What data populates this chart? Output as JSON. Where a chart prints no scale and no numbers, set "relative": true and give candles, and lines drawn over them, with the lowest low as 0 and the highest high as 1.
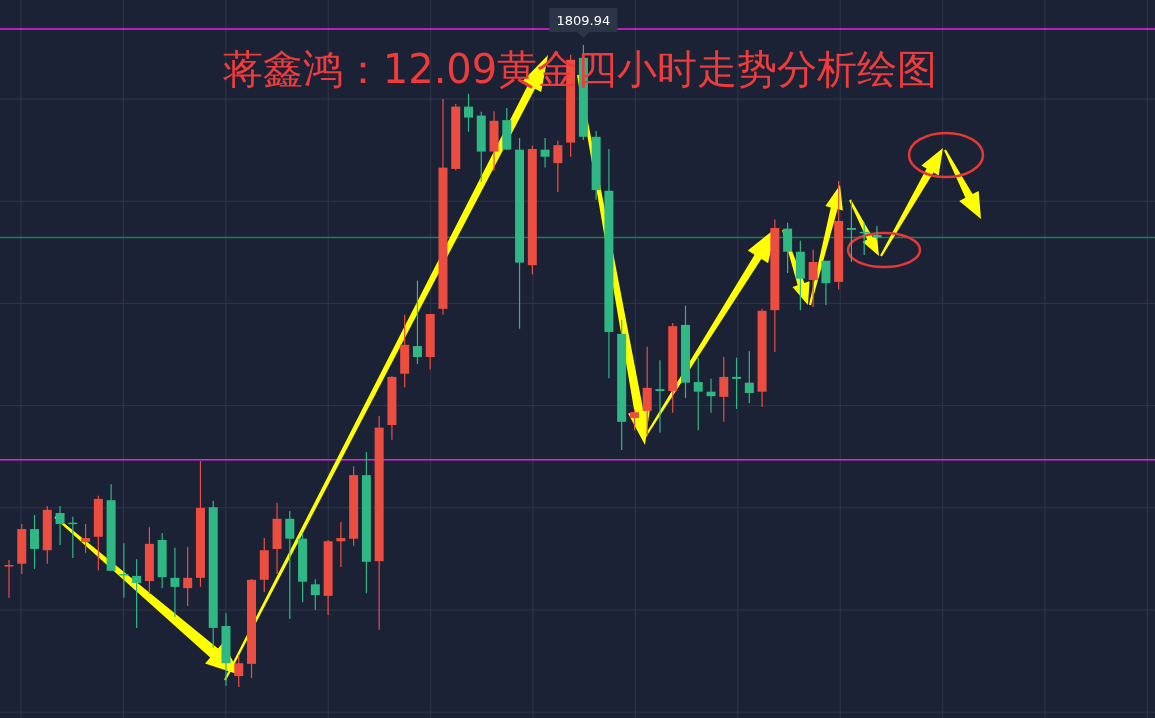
{
  "chart_data": {
    "type": "candlestick",
    "title": "蒋鑫鸿：12.09黄金四小时走势分析绘图",
    "relative": true,
    "grid": true,
    "annotations": [
      "1809.94"
    ],
    "ref_lines": [
      {
        "axis": "y",
        "value": 1.025,
        "color": "#e81ee8"
      },
      {
        "axis": "y",
        "value": 0.354,
        "color": "#e81ee8"
      },
      {
        "axis": "y",
        "value": 0.7,
        "color": "#1e7a5c"
      }
    ],
    "categories": [
      null,
      null,
      null,
      null,
      null,
      null,
      null,
      null,
      null,
      null,
      null,
      null,
      null,
      null,
      null,
      null,
      null,
      null,
      null,
      null,
      null,
      null,
      null,
      null,
      null,
      null,
      null,
      null,
      null,
      null,
      null,
      null,
      null,
      null,
      null,
      null,
      null,
      null,
      null,
      null,
      null,
      null,
      null,
      null,
      null,
      null,
      null,
      null,
      null,
      null,
      null,
      null,
      null,
      null,
      null,
      null,
      null,
      null,
      null,
      null,
      null,
      null,
      null,
      null,
      null,
      null,
      null,
      null,
      null,
      null,
      null,
      null,
      null,
      null,
      null,
      null,
      null,
      null,
      null,
      null,
      null,
      null,
      null,
      null,
      null,
      null,
      null,
      null,
      null,
      null
    ],
    "ohlc": [
      [
        0.189,
        0.198,
        0.139,
        0.19
      ],
      [
        0.192,
        0.254,
        0.176,
        0.246
      ],
      [
        0.246,
        0.268,
        0.184,
        0.215
      ],
      [
        0.213,
        0.282,
        0.192,
        0.276
      ],
      [
        0.271,
        0.282,
        0.221,
        0.254
      ],
      [
        0.256,
        0.265,
        0.201,
        0.254
      ],
      [
        0.226,
        0.254,
        0.209,
        0.232
      ],
      [
        0.234,
        0.298,
        0.182,
        0.293
      ],
      [
        0.291,
        0.316,
        0.181,
        0.181
      ],
      [
        0.176,
        0.224,
        0.139,
        0.174
      ],
      [
        0.173,
        0.199,
        0.092,
        0.162
      ],
      [
        0.165,
        0.249,
        0.145,
        0.223
      ],
      [
        0.229,
        0.24,
        0.154,
        0.171
      ],
      [
        0.17,
        0.217,
        0.109,
        0.156
      ],
      [
        0.154,
        0.218,
        0.126,
        0.17
      ],
      [
        0.17,
        0.352,
        0.156,
        0.279
      ],
      [
        0.28,
        0.29,
        0.061,
        0.092
      ],
      [
        0.095,
        0.115,
        0.002,
        0.037
      ],
      [
        0.017,
        0.05,
        0,
        0.037
      ],
      [
        0.036,
        0.168,
        0.014,
        0.167
      ],
      [
        0.167,
        0.232,
        0.148,
        0.213
      ],
      [
        0.215,
        0.287,
        0.176,
        0.262
      ],
      [
        0.262,
        0.274,
        0.106,
        0.231
      ],
      [
        0.231,
        0.24,
        0.132,
        0.164
      ],
      [
        0.16,
        0.168,
        0.12,
        0.143
      ],
      [
        0.142,
        0.229,
        0.112,
        0.227
      ],
      [
        0.227,
        0.257,
        0.187,
        0.232
      ],
      [
        0.231,
        0.344,
        0.22,
        0.33
      ],
      [
        0.33,
        0.366,
        0.146,
        0.195
      ],
      [
        0.196,
        0.422,
        0.089,
        0.404
      ],
      [
        0.408,
        0.485,
        0.385,
        0.483
      ],
      [
        0.488,
        0.58,
        0.467,
        0.533
      ],
      [
        0.531,
        0.633,
        0.503,
        0.514
      ],
      [
        0.514,
        0.581,
        0.495,
        0.581
      ],
      [
        0.589,
        0.916,
        0.58,
        0.809
      ],
      [
        0.807,
        0.908,
        0.805,
        0.904
      ],
      [
        0.904,
        0.924,
        0.865,
        0.887
      ],
      [
        0.89,
        0.896,
        0.787,
        0.834
      ],
      [
        0.834,
        0.897,
        0.804,
        0.882
      ],
      [
        0.883,
        0.902,
        0.837,
        0.837
      ],
      [
        0.837,
        0.855,
        0.558,
        0.661
      ],
      [
        0.657,
        0.843,
        0.643,
        0.838
      ],
      [
        0.837,
        0.855,
        0.809,
        0.826
      ],
      [
        0.816,
        0.851,
        0.771,
        0.844
      ],
      [
        0.848,
        0.985,
        0.826,
        0.977
      ],
      [
        0.98,
        1,
        0.852,
        0.857
      ],
      [
        0.857,
        0.866,
        0.759,
        0.774
      ],
      [
        0.773,
        0.838,
        0.481,
        0.553
      ],
      [
        0.55,
        0.572,
        0.369,
        0.413
      ],
      [
        0.419,
        0.432,
        0.4,
        0.428
      ],
      [
        0.43,
        0.53,
        0.39,
        0.466
      ],
      [
        0.464,
        0.509,
        0.396,
        0.461
      ],
      [
        0.461,
        0.567,
        0.427,
        0.562
      ],
      [
        0.564,
        0.594,
        0.45,
        0.474
      ],
      [
        0.475,
        0.513,
        0.4,
        0.46
      ],
      [
        0.46,
        0.48,
        0.427,
        0.453
      ],
      [
        0.452,
        0.514,
        0.413,
        0.483
      ],
      [
        0.483,
        0.513,
        0.433,
        0.48
      ],
      [
        0.474,
        0.523,
        0.442,
        0.458
      ],
      [
        0.46,
        0.589,
        0.436,
        0.586
      ],
      [
        0.587,
        0.728,
        0.522,
        0.715
      ],
      [
        0.714,
        0.723,
        0.645,
        0.678
      ],
      [
        0.678,
        0.695,
        0.587,
        0.636
      ],
      [
        0.634,
        0.681,
        0.592,
        0.662
      ],
      [
        0.664,
        0.664,
        0.595,
        0.629
      ],
      [
        0.631,
        0.788,
        0.619,
        0.726
      ],
      [
        0.715,
        0.759,
        0.662,
        0.712
      ],
      [
        0.709,
        0.724,
        0.673,
        0.707
      ],
      [
        0.704,
        0.718,
        0.696,
        0.7
      ],
      null,
      null,
      null,
      null,
      null,
      null,
      null,
      null,
      null,
      null,
      null,
      null,
      null,
      null,
      null,
      null,
      null,
      null,
      null,
      null,
      null
    ],
    "colors": [
      "#eb4e40",
      "#eb4e40",
      "#2fb784",
      "#eb4e40",
      "#2fb784",
      "#2fb784",
      "#eb4e40",
      "#eb4e40",
      "#2fb784",
      "#2fb784",
      "#2fb784",
      "#eb4e40",
      "#2fb784",
      "#2fb784",
      "#eb4e40",
      "#eb4e40",
      "#2fb784",
      "#2fb784",
      "#eb4e40",
      "#eb4e40",
      "#eb4e40",
      "#eb4e40",
      "#2fb784",
      "#2fb784",
      "#2fb784",
      "#eb4e40",
      "#eb4e40",
      "#eb4e40",
      "#2fb784",
      "#eb4e40",
      "#eb4e40",
      "#eb4e40",
      "#2fb784",
      "#eb4e40",
      "#eb4e40",
      "#eb4e40",
      "#2fb784",
      "#2fb784",
      "#eb4e40",
      "#2fb784",
      "#2fb784",
      "#eb4e40",
      "#2fb784",
      "#eb4e40",
      "#eb4e40",
      "#2fb784",
      "#2fb784",
      "#2fb784",
      "#2fb784",
      "#eb4e40",
      "#eb4e40",
      "#2fb784",
      "#eb4e40",
      "#2fb784",
      "#2fb784",
      "#2fb784",
      "#eb4e40",
      "#2fb784",
      "#2fb784",
      "#eb4e40",
      "#eb4e40",
      "#2fb784",
      "#2fb784",
      "#eb4e40",
      "#2fb784",
      "#eb4e40",
      "#2fb784",
      "#2fb784",
      "#2fb784",
      null,
      null,
      null,
      null,
      null,
      null,
      null,
      null,
      null,
      null,
      null,
      null,
      null,
      null,
      null,
      null,
      null,
      null,
      null,
      null,
      null
    ]
  }
}
